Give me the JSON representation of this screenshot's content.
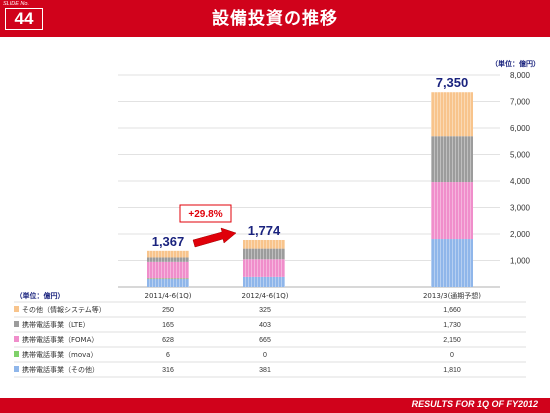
{
  "header": {
    "slide_label": "SLIDE No.",
    "slide_number": "44",
    "title": "設備投資の推移"
  },
  "footer": {
    "text": "RESULTS FOR 1Q OF FY2012"
  },
  "growth_label": "+29.8%",
  "colors": {
    "header_red": "#d0021b",
    "arrow_red": "#e0000a",
    "series": [
      "#f8c48c",
      "#9c9c9c",
      "#f08ecb",
      "#7fd16a",
      "#8fb6ea"
    ]
  },
  "chart_data": {
    "type": "bar",
    "stacked": true,
    "unit": "（単位：億円）",
    "categories": [
      "2011/4-6(1Q)",
      "2012/4-6(1Q)",
      "2013/3(通期予想)"
    ],
    "totals": [
      "1,367",
      "1,774",
      "7,350"
    ],
    "total_values": [
      1367,
      1774,
      7350
    ],
    "ylim": [
      0,
      8000
    ],
    "yticks": [
      "1,000",
      "2,000",
      "3,000",
      "4,000",
      "5,000",
      "6,000",
      "7,000",
      "8,000"
    ],
    "table_header": "（単位：億円）",
    "series": [
      {
        "name": "その他（情報システム等）",
        "values": [
          250,
          325,
          1660
        ],
        "labels": [
          "250",
          "325",
          "1,660"
        ]
      },
      {
        "name": "携帯電話事業（LTE）",
        "values": [
          165,
          403,
          1730
        ],
        "labels": [
          "165",
          "403",
          "1,730"
        ]
      },
      {
        "name": "携帯電話事業（FOMA）",
        "values": [
          628,
          665,
          2150
        ],
        "labels": [
          "628",
          "665",
          "2,150"
        ]
      },
      {
        "name": "携帯電話事業（mova）",
        "values": [
          6,
          0,
          0
        ],
        "labels": [
          "6",
          "0",
          "0"
        ]
      },
      {
        "name": "携帯電話事業（その他）",
        "values": [
          316,
          381,
          1810
        ],
        "labels": [
          "316",
          "381",
          "1,810"
        ]
      }
    ]
  }
}
